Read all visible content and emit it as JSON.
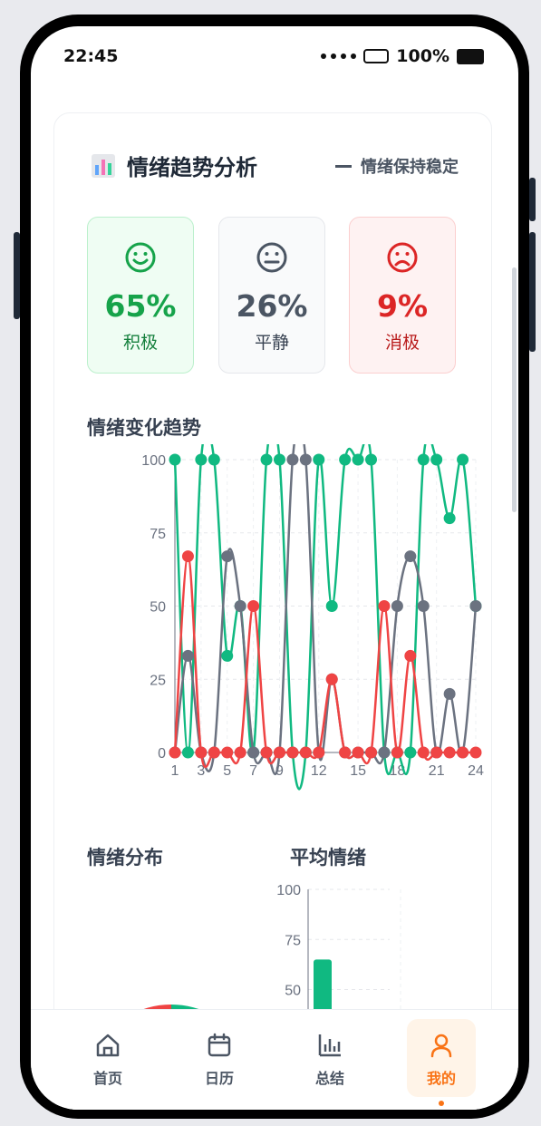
{
  "status_bar": {
    "time": "22:45",
    "battery": "100%"
  },
  "card": {
    "title": "情绪趋势分析",
    "stability": "情绪保持稳定",
    "stats": [
      {
        "percent": "65%",
        "label": "积极",
        "color": "#16a34a"
      },
      {
        "percent": "26%",
        "label": "平静",
        "color": "#4b5563"
      },
      {
        "percent": "9%",
        "label": "消极",
        "color": "#dc2626"
      }
    ]
  },
  "trend_title": "情绪变化趋势",
  "distribution_title": "情绪分布",
  "average_title": "平均情绪",
  "nav": {
    "items": [
      {
        "label": "首页"
      },
      {
        "label": "日历"
      },
      {
        "label": "总结"
      },
      {
        "label": "我的"
      }
    ]
  },
  "chart_data": [
    {
      "type": "line",
      "x": [
        1,
        2,
        3,
        4,
        5,
        6,
        7,
        8,
        9,
        10,
        11,
        12,
        13,
        14,
        15,
        16,
        17,
        18,
        19,
        20,
        21,
        22,
        23,
        24
      ],
      "x_tick_labels": [
        "1",
        "3",
        "5",
        "7",
        "9",
        "12",
        "15",
        "18",
        "21",
        "24"
      ],
      "ylim": [
        0,
        100
      ],
      "y_ticks": [
        0,
        25,
        50,
        75,
        100
      ],
      "grid": true,
      "colors": [
        "#10b981",
        "#6b7280",
        "#ef4444"
      ],
      "series": [
        {
          "values": [
            100,
            0,
            100,
            100,
            33,
            50,
            0,
            100,
            100,
            0,
            0,
            100,
            50,
            100,
            100,
            100,
            0,
            0,
            0,
            100,
            100,
            80,
            100,
            50
          ]
        },
        {
          "values": [
            0,
            33,
            0,
            0,
            67,
            50,
            0,
            0,
            0,
            100,
            100,
            0,
            25,
            0,
            0,
            0,
            0,
            50,
            67,
            50,
            0,
            20,
            0,
            50
          ]
        },
        {
          "values": [
            0,
            67,
            0,
            0,
            0,
            0,
            50,
            0,
            0,
            0,
            0,
            0,
            25,
            0,
            0,
            0,
            50,
            0,
            33,
            0,
            0,
            0,
            0,
            0
          ]
        }
      ]
    },
    {
      "type": "pie",
      "values": [
        65,
        26,
        9
      ],
      "colors": [
        "#10b981",
        "#6b7280",
        "#ef4444"
      ]
    },
    {
      "type": "bar",
      "ylim": [
        0,
        100
      ],
      "y_ticks": [
        50,
        75,
        100
      ],
      "values": [
        65
      ],
      "colors": [
        "#10b981"
      ]
    }
  ]
}
